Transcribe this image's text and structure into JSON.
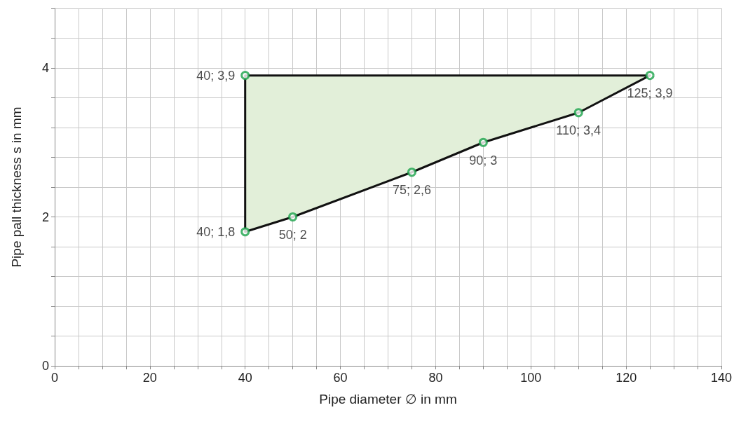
{
  "chart_data": {
    "type": "area",
    "xlabel": "Pipe diameter ∅ in mm",
    "ylabel": "Pipe pall thickness s in mm",
    "series": [
      {
        "color": "#e2efd9",
        "x": [
          40,
          40,
          50,
          75,
          90,
          110,
          125
        ],
        "values": [
          3.9,
          1.8,
          2,
          2.6,
          3,
          3.4,
          3.9
        ],
        "value_labels": [
          "40; 3,9",
          "40; 1,8",
          "50; 2",
          "75; 2,6",
          "90; 3",
          "110; 3,4",
          "125; 3,9"
        ],
        "colors": [
          "#1aa34a",
          "#1aa34a",
          "#1aa34a",
          "#1aa34a",
          "#1aa34a",
          "#1aa34a",
          "#1aa34a"
        ]
      }
    ],
    "xlim": [
      0,
      140
    ],
    "xticks": [
      0,
      {
        "value": 5,
        "label": null
      },
      {
        "value": 10,
        "label": null
      },
      {
        "value": 15,
        "label": null
      },
      20,
      {
        "value": 25,
        "label": null
      },
      {
        "value": 30,
        "label": null
      },
      {
        "value": 35,
        "label": null
      },
      40,
      {
        "value": 45,
        "label": null
      },
      {
        "value": 50,
        "label": null
      },
      {
        "value": 55,
        "label": null
      },
      60,
      {
        "value": 65,
        "label": null
      },
      {
        "value": 70,
        "label": null
      },
      {
        "value": 75,
        "label": null
      },
      80,
      {
        "value": 85,
        "label": null
      },
      {
        "value": 90,
        "label": null
      },
      {
        "value": 95,
        "label": null
      },
      100,
      {
        "value": 105,
        "label": null
      },
      {
        "value": 110,
        "label": null
      },
      {
        "value": 115,
        "label": null
      },
      120,
      {
        "value": 125,
        "label": null
      },
      {
        "value": 130,
        "label": null
      },
      {
        "value": 135,
        "label": null
      },
      140
    ],
    "ylim": [
      0,
      4.8
    ],
    "yticks": [
      0,
      {
        "value": 0.4,
        "label": null
      },
      {
        "value": 0.8,
        "label": null
      },
      {
        "value": 1.2,
        "label": null
      },
      {
        "value": 1.6,
        "label": null
      },
      2,
      {
        "value": 2.4,
        "label": null
      },
      {
        "value": 2.8,
        "label": null
      },
      {
        "value": 3.2,
        "label": null
      },
      {
        "value": 3.6,
        "label": null
      },
      4,
      {
        "value": 4.4,
        "label": null
      },
      {
        "value": 4.8,
        "label": null
      }
    ],
    "grid": true,
    "marker": "circle",
    "line_style": "solid"
  }
}
